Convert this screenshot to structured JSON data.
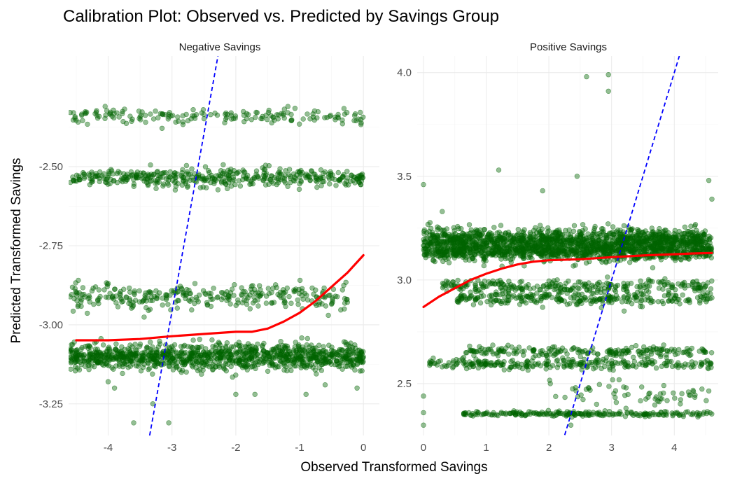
{
  "chart_data": {
    "type": "scatter",
    "title": "Calibration Plot: Observed vs. Predicted by Savings Group",
    "xlabel": "Observed Transformed Savings",
    "ylabel": "Predicted Transformed Savings",
    "colors": {
      "points": "#006400",
      "smooth": "#ff0000",
      "identity": "#0000ff",
      "grid": "#ebebeb"
    },
    "panels": [
      {
        "name": "Negative Savings",
        "xlim": [
          -4.62,
          0.25
        ],
        "ylim": [
          -3.35,
          -2.15
        ],
        "xticks": [
          -4,
          -3,
          -2,
          -1,
          0
        ],
        "xtick_labels": [
          "-4",
          "-3",
          "-2",
          "-1",
          "0"
        ],
        "yticks": [
          -3.25,
          -3.0,
          -2.75,
          -2.5
        ],
        "ytick_labels": [
          "-3.25",
          "-3.00",
          "-2.75",
          "-2.50"
        ],
        "point_bands": [
          {
            "y": -2.34,
            "spread": 0.012,
            "x_from": -4.6,
            "x_to": 0.0,
            "count": 170
          },
          {
            "y": -2.535,
            "spread": 0.015,
            "x_from": -4.6,
            "x_to": 0.0,
            "count": 420
          },
          {
            "y": -2.91,
            "spread": 0.02,
            "x_from": -4.6,
            "x_to": -0.25,
            "count": 300
          },
          {
            "y": -3.1,
            "spread": 0.02,
            "x_from": -4.6,
            "x_to": 0.0,
            "count": 1100
          }
        ],
        "outliers": [
          {
            "x": -3.6,
            "y": -3.31
          },
          {
            "x": -3.9,
            "y": -3.2
          },
          {
            "x": -3.3,
            "y": -3.25
          },
          {
            "x": -3.05,
            "y": -3.31
          },
          {
            "x": -2.0,
            "y": -3.22
          },
          {
            "x": -1.7,
            "y": -3.22
          },
          {
            "x": -0.9,
            "y": -3.22
          },
          {
            "x": -0.6,
            "y": -3.19
          },
          {
            "x": -0.1,
            "y": -3.2
          },
          {
            "x": -4.0,
            "y": -3.18
          },
          {
            "x": -0.55,
            "y": -2.97
          },
          {
            "x": -0.3,
            "y": -2.95
          },
          {
            "x": -0.75,
            "y": -2.89
          }
        ],
        "smooth": {
          "x": [
            -4.5,
            -4.0,
            -3.5,
            -3.0,
            -2.5,
            -2.0,
            -1.75,
            -1.5,
            -1.25,
            -1.0,
            -0.75,
            -0.5,
            -0.25,
            0.0
          ],
          "y": [
            -3.049,
            -3.049,
            -3.045,
            -3.036,
            -3.029,
            -3.022,
            -3.022,
            -3.012,
            -2.99,
            -2.962,
            -2.925,
            -2.88,
            -2.835,
            -2.78
          ]
        },
        "identity": {
          "x": [
            -3.35,
            -2.28
          ],
          "y": [
            -3.35,
            -2.15
          ]
        }
      },
      {
        "name": "Positive Savings",
        "xlim": [
          -0.1,
          4.7
        ],
        "ylim": [
          2.25,
          4.08
        ],
        "xticks": [
          0,
          1,
          2,
          3,
          4
        ],
        "xtick_labels": [
          "0",
          "1",
          "2",
          "3",
          "4"
        ],
        "yticks": [
          2.5,
          3.0,
          3.5,
          4.0
        ],
        "ytick_labels": [
          "2.5",
          "3.0",
          "3.5",
          "4.0"
        ],
        "point_bands": [
          {
            "y": 3.185,
            "spread": 0.03,
            "x_from": 0.0,
            "x_to": 4.6,
            "count": 1400
          },
          {
            "y": 3.13,
            "spread": 0.02,
            "x_from": 0.0,
            "x_to": 4.6,
            "count": 600
          },
          {
            "y": 2.97,
            "spread": 0.015,
            "x_from": 0.3,
            "x_to": 4.6,
            "count": 260
          },
          {
            "y": 2.91,
            "spread": 0.015,
            "x_from": 0.5,
            "x_to": 4.6,
            "count": 260
          },
          {
            "y": 2.655,
            "spread": 0.012,
            "x_from": 0.6,
            "x_to": 4.6,
            "count": 200
          },
          {
            "y": 2.595,
            "spread": 0.012,
            "x_from": 0.0,
            "x_to": 4.6,
            "count": 260
          },
          {
            "y": 2.45,
            "spread": 0.03,
            "x_from": 2.0,
            "x_to": 4.6,
            "count": 60
          },
          {
            "y": 2.355,
            "spread": 0.006,
            "x_from": 0.6,
            "x_to": 4.6,
            "count": 220
          }
        ],
        "outliers": [
          {
            "x": 2.6,
            "y": 3.98
          },
          {
            "x": 2.95,
            "y": 3.99
          },
          {
            "x": 2.95,
            "y": 3.91
          },
          {
            "x": 1.2,
            "y": 3.53
          },
          {
            "x": 2.45,
            "y": 3.5
          },
          {
            "x": 4.55,
            "y": 3.48
          },
          {
            "x": 1.9,
            "y": 3.43
          },
          {
            "x": 0.0,
            "y": 3.46
          },
          {
            "x": 0.0,
            "y": 2.3
          },
          {
            "x": 2.35,
            "y": 2.3
          },
          {
            "x": 3.2,
            "y": 2.85
          },
          {
            "x": 4.6,
            "y": 3.39
          },
          {
            "x": 0.3,
            "y": 3.33
          },
          {
            "x": 0.0,
            "y": 2.36
          },
          {
            "x": 0.0,
            "y": 2.44
          }
        ],
        "smooth": {
          "x": [
            0.0,
            0.25,
            0.5,
            0.75,
            1.0,
            1.25,
            1.5,
            1.75,
            2.0,
            2.5,
            3.0,
            3.5,
            4.0,
            4.3,
            4.6
          ],
          "y": [
            2.87,
            2.92,
            2.96,
            3.0,
            3.03,
            3.055,
            3.075,
            3.088,
            3.095,
            3.1,
            3.11,
            3.118,
            3.124,
            3.128,
            3.13
          ]
        },
        "identity": {
          "x": [
            2.22,
            4.08
          ],
          "y": [
            2.22,
            4.08
          ]
        }
      }
    ]
  }
}
